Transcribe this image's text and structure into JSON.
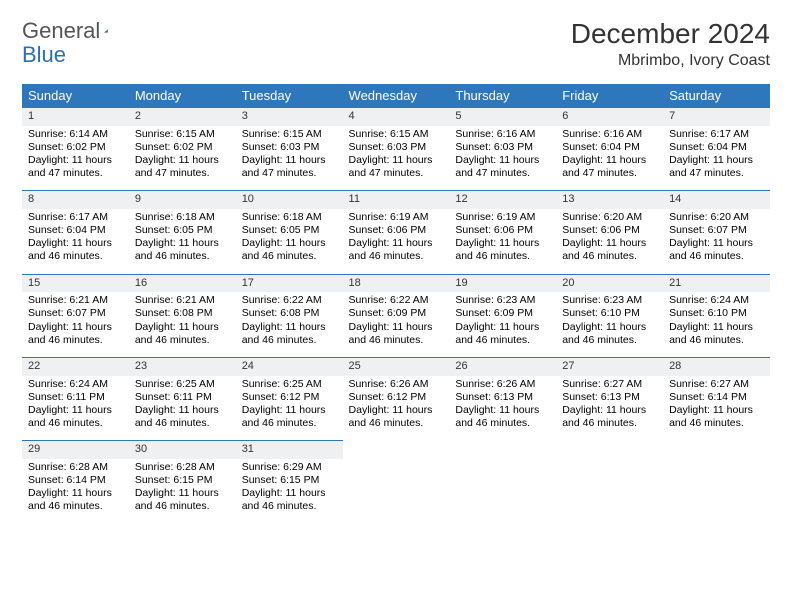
{
  "brand": {
    "part1": "General",
    "part2": "Blue"
  },
  "title": "December 2024",
  "location": "Mbrimbo, Ivory Coast",
  "colors": {
    "header_bg": "#2f77bc",
    "header_fg": "#ffffff",
    "daynum_bg": "#eef0f2",
    "rule": "#2f77bc",
    "text": "#000000"
  },
  "weekdays": [
    "Sunday",
    "Monday",
    "Tuesday",
    "Wednesday",
    "Thursday",
    "Friday",
    "Saturday"
  ],
  "cells": [
    {
      "n": "1",
      "sr": "6:14 AM",
      "ss": "6:02 PM",
      "dl": "11 hours and 47 minutes."
    },
    {
      "n": "2",
      "sr": "6:15 AM",
      "ss": "6:02 PM",
      "dl": "11 hours and 47 minutes."
    },
    {
      "n": "3",
      "sr": "6:15 AM",
      "ss": "6:03 PM",
      "dl": "11 hours and 47 minutes."
    },
    {
      "n": "4",
      "sr": "6:15 AM",
      "ss": "6:03 PM",
      "dl": "11 hours and 47 minutes."
    },
    {
      "n": "5",
      "sr": "6:16 AM",
      "ss": "6:03 PM",
      "dl": "11 hours and 47 minutes."
    },
    {
      "n": "6",
      "sr": "6:16 AM",
      "ss": "6:04 PM",
      "dl": "11 hours and 47 minutes."
    },
    {
      "n": "7",
      "sr": "6:17 AM",
      "ss": "6:04 PM",
      "dl": "11 hours and 47 minutes."
    },
    {
      "n": "8",
      "sr": "6:17 AM",
      "ss": "6:04 PM",
      "dl": "11 hours and 46 minutes."
    },
    {
      "n": "9",
      "sr": "6:18 AM",
      "ss": "6:05 PM",
      "dl": "11 hours and 46 minutes."
    },
    {
      "n": "10",
      "sr": "6:18 AM",
      "ss": "6:05 PM",
      "dl": "11 hours and 46 minutes."
    },
    {
      "n": "11",
      "sr": "6:19 AM",
      "ss": "6:06 PM",
      "dl": "11 hours and 46 minutes."
    },
    {
      "n": "12",
      "sr": "6:19 AM",
      "ss": "6:06 PM",
      "dl": "11 hours and 46 minutes."
    },
    {
      "n": "13",
      "sr": "6:20 AM",
      "ss": "6:06 PM",
      "dl": "11 hours and 46 minutes."
    },
    {
      "n": "14",
      "sr": "6:20 AM",
      "ss": "6:07 PM",
      "dl": "11 hours and 46 minutes."
    },
    {
      "n": "15",
      "sr": "6:21 AM",
      "ss": "6:07 PM",
      "dl": "11 hours and 46 minutes."
    },
    {
      "n": "16",
      "sr": "6:21 AM",
      "ss": "6:08 PM",
      "dl": "11 hours and 46 minutes."
    },
    {
      "n": "17",
      "sr": "6:22 AM",
      "ss": "6:08 PM",
      "dl": "11 hours and 46 minutes."
    },
    {
      "n": "18",
      "sr": "6:22 AM",
      "ss": "6:09 PM",
      "dl": "11 hours and 46 minutes."
    },
    {
      "n": "19",
      "sr": "6:23 AM",
      "ss": "6:09 PM",
      "dl": "11 hours and 46 minutes."
    },
    {
      "n": "20",
      "sr": "6:23 AM",
      "ss": "6:10 PM",
      "dl": "11 hours and 46 minutes."
    },
    {
      "n": "21",
      "sr": "6:24 AM",
      "ss": "6:10 PM",
      "dl": "11 hours and 46 minutes."
    },
    {
      "n": "22",
      "sr": "6:24 AM",
      "ss": "6:11 PM",
      "dl": "11 hours and 46 minutes."
    },
    {
      "n": "23",
      "sr": "6:25 AM",
      "ss": "6:11 PM",
      "dl": "11 hours and 46 minutes."
    },
    {
      "n": "24",
      "sr": "6:25 AM",
      "ss": "6:12 PM",
      "dl": "11 hours and 46 minutes."
    },
    {
      "n": "25",
      "sr": "6:26 AM",
      "ss": "6:12 PM",
      "dl": "11 hours and 46 minutes."
    },
    {
      "n": "26",
      "sr": "6:26 AM",
      "ss": "6:13 PM",
      "dl": "11 hours and 46 minutes."
    },
    {
      "n": "27",
      "sr": "6:27 AM",
      "ss": "6:13 PM",
      "dl": "11 hours and 46 minutes."
    },
    {
      "n": "28",
      "sr": "6:27 AM",
      "ss": "6:14 PM",
      "dl": "11 hours and 46 minutes."
    },
    {
      "n": "29",
      "sr": "6:28 AM",
      "ss": "6:14 PM",
      "dl": "11 hours and 46 minutes."
    },
    {
      "n": "30",
      "sr": "6:28 AM",
      "ss": "6:15 PM",
      "dl": "11 hours and 46 minutes."
    },
    {
      "n": "31",
      "sr": "6:29 AM",
      "ss": "6:15 PM",
      "dl": "11 hours and 46 minutes."
    }
  ],
  "labels": {
    "sunrise": "Sunrise:",
    "sunset": "Sunset:",
    "daylight": "Daylight:"
  }
}
